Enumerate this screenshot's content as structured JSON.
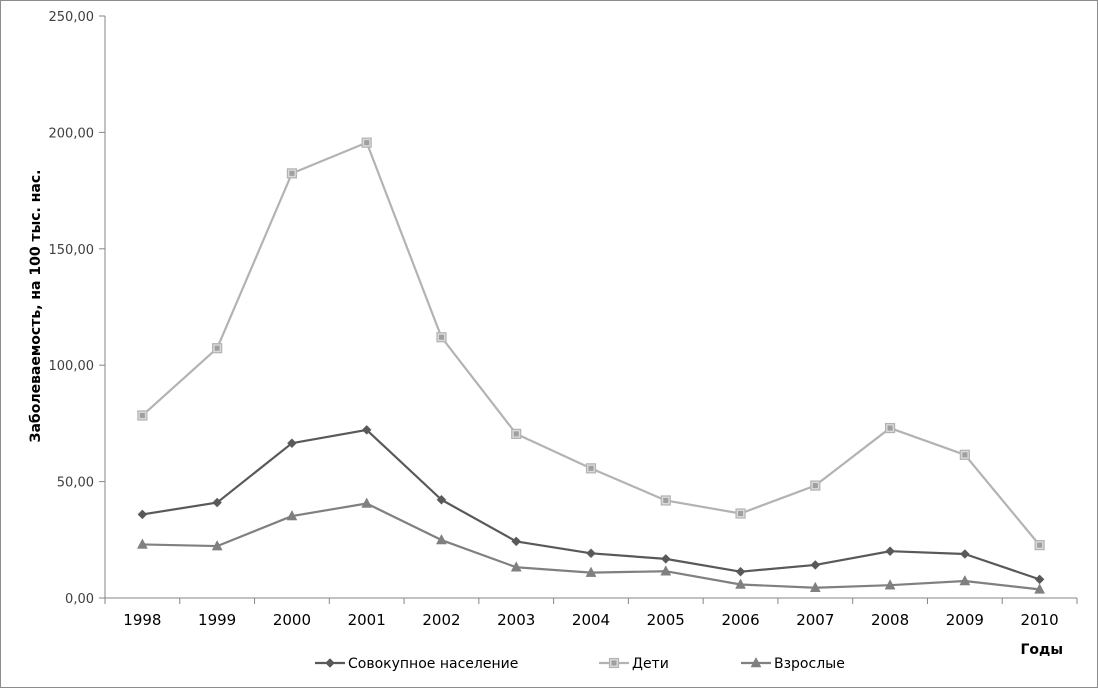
{
  "chart_data": {
    "type": "line",
    "ylabel": "Заболеваемость, на 100 тыс. нас.",
    "xlabel": "Годы",
    "categories": [
      "1998",
      "1999",
      "2000",
      "2001",
      "2002",
      "2003",
      "2004",
      "2005",
      "2006",
      "2007",
      "2008",
      "2009",
      "2010"
    ],
    "ylim": [
      0,
      250
    ],
    "yticks": [
      "0,00",
      "50,00",
      "100,00",
      "150,00",
      "200,00",
      "250,00"
    ],
    "grid": false,
    "legend_position": "bottom",
    "series": [
      {
        "name": "Совокупное население",
        "marker": "diamond",
        "color": "#595959",
        "values": [
          35.9,
          41.0,
          66.5,
          72.2,
          42.2,
          24.3,
          19.2,
          16.8,
          11.3,
          14.2,
          20.1,
          18.9,
          8.0
        ]
      },
      {
        "name": "Дети",
        "marker": "square",
        "color": "#b3b3b3",
        "values": [
          78.4,
          107.3,
          182.4,
          195.6,
          112.0,
          70.5,
          55.7,
          41.9,
          36.3,
          48.3,
          73.0,
          61.5,
          22.7
        ]
      },
      {
        "name": "Взрослые",
        "marker": "triangle",
        "color": "#808080",
        "values": [
          23.0,
          22.3,
          35.2,
          40.6,
          24.9,
          13.2,
          10.9,
          11.5,
          5.8,
          4.4,
          5.5,
          7.3,
          3.7
        ]
      }
    ]
  }
}
